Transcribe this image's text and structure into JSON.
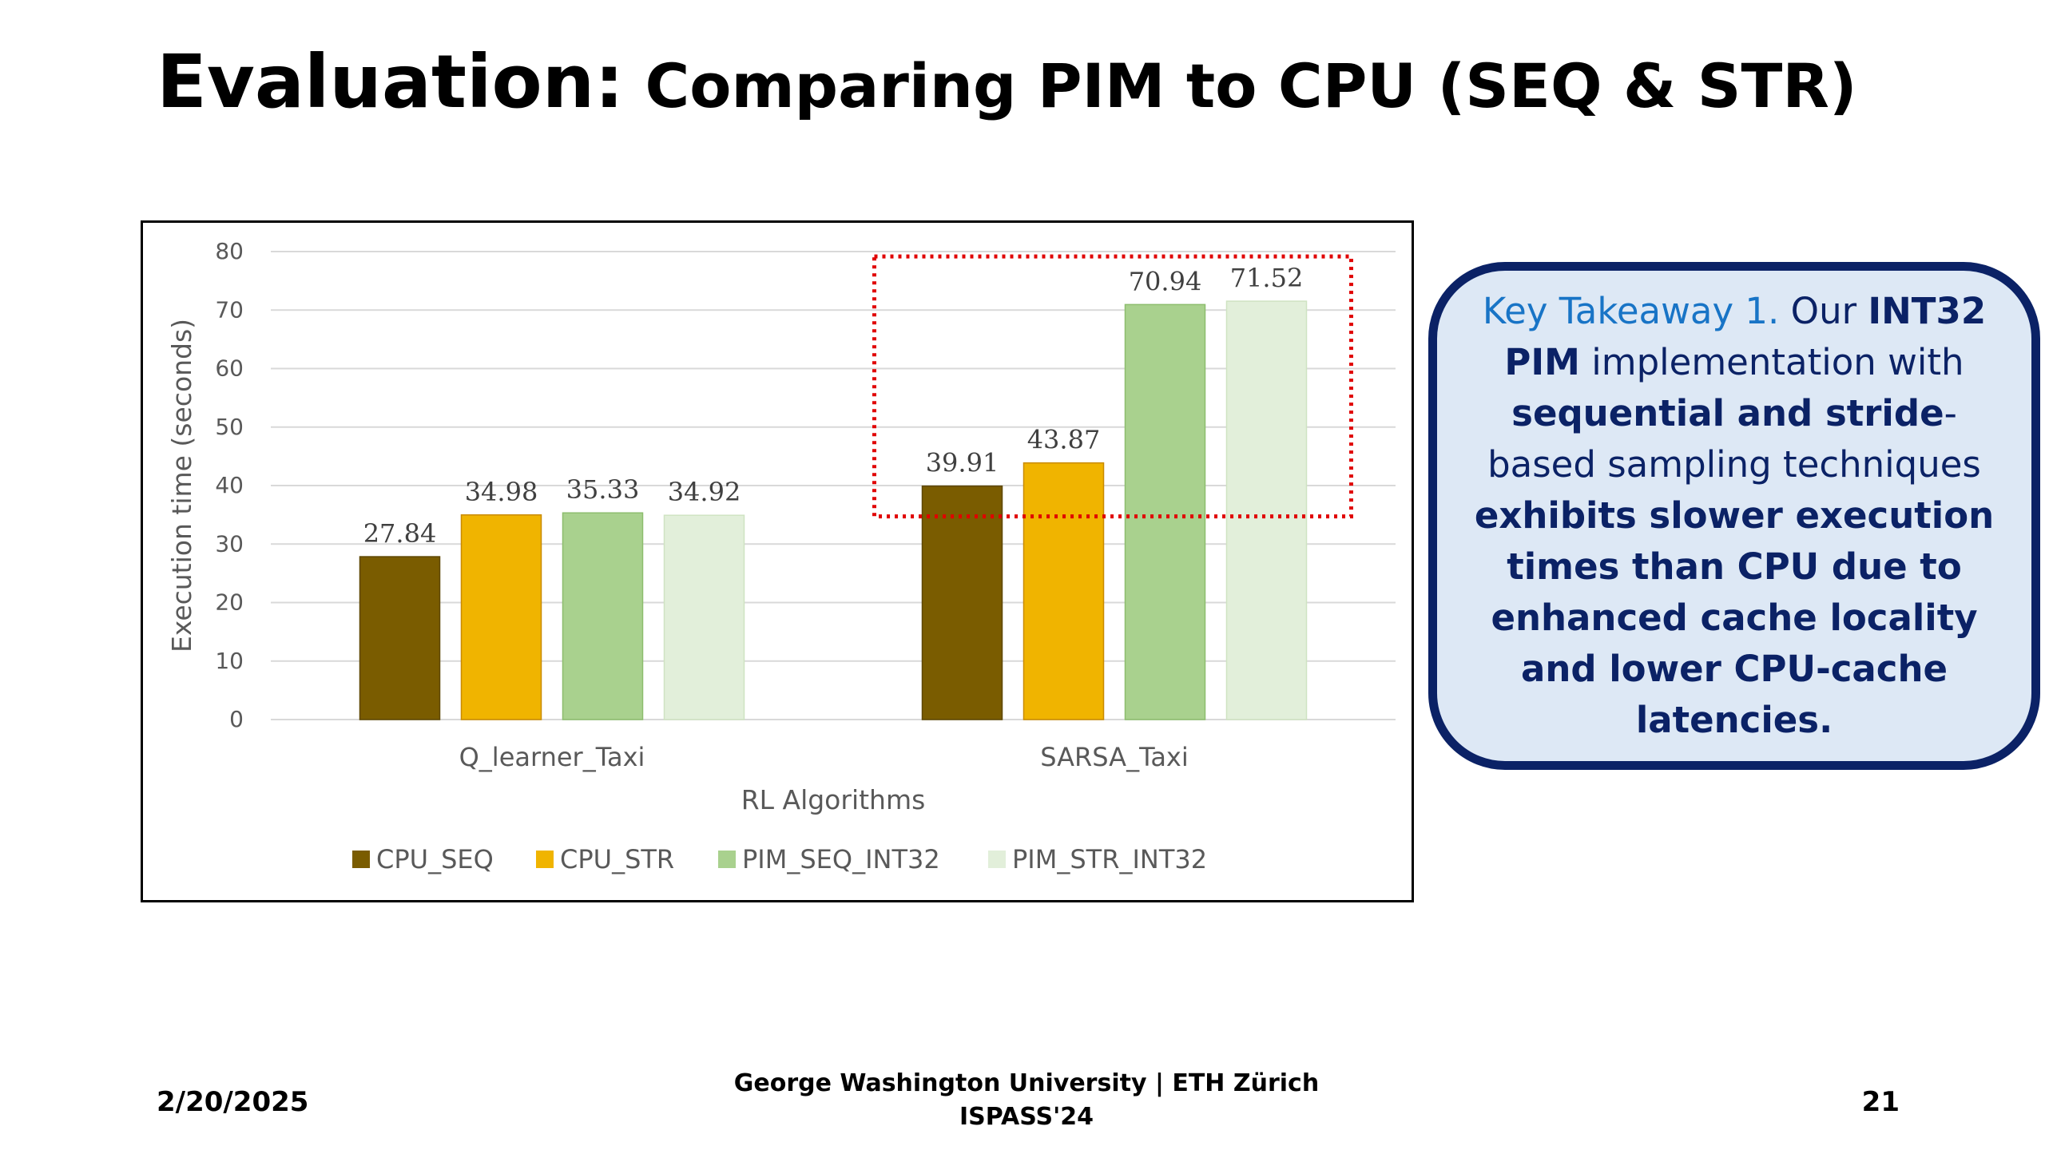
{
  "slide": {
    "title_main": "Evaluation:",
    "title_sub": " Comparing PIM to CPU (SEQ & STR)"
  },
  "chart_data": {
    "type": "bar",
    "categories": [
      "Q_learner_Taxi",
      "SARSA_Taxi"
    ],
    "series": [
      {
        "name": "CPU_SEQ",
        "values": [
          27.84,
          39.91
        ],
        "color": "#7a5c00"
      },
      {
        "name": "CPU_STR",
        "values": [
          34.98,
          43.87
        ],
        "color": "#f0b400"
      },
      {
        "name": "PIM_SEQ_INT32",
        "values": [
          35.33,
          70.94
        ],
        "color": "#a9d18e"
      },
      {
        "name": "PIM_STR_INT32",
        "values": [
          34.92,
          71.52
        ],
        "color": "#e2efda"
      }
    ],
    "xlabel": "RL Algorithms",
    "ylabel": "Execution time (seconds)",
    "ylim": [
      0,
      80
    ],
    "yticks": [
      0,
      10,
      20,
      30,
      40,
      50,
      60,
      70,
      80
    ],
    "grid": true,
    "legend": "bottom",
    "highlight": {
      "category": "SARSA_Taxi",
      "style": "dotted",
      "color": "#e00000"
    }
  },
  "takeaway": {
    "heading": "Key Takeaway 1.",
    "t1": " Our ",
    "b1": "INT32 PIM",
    "t2": " implementation with ",
    "b2": "sequential and stride",
    "t3": "-based sampling techniques ",
    "b3": "exhibits slower execution times than CPU due to enhanced cache locality and lower CPU-cache latencies."
  },
  "footer": {
    "date": "2/20/2025",
    "affiliation": "George Washington University | ETH Zürich",
    "venue": "ISPASS'24",
    "page": "21"
  },
  "colors": {
    "takeaway_border": "#0b2266",
    "takeaway_bg": "#dde8f5",
    "takeaway_heading": "#1874c6"
  }
}
